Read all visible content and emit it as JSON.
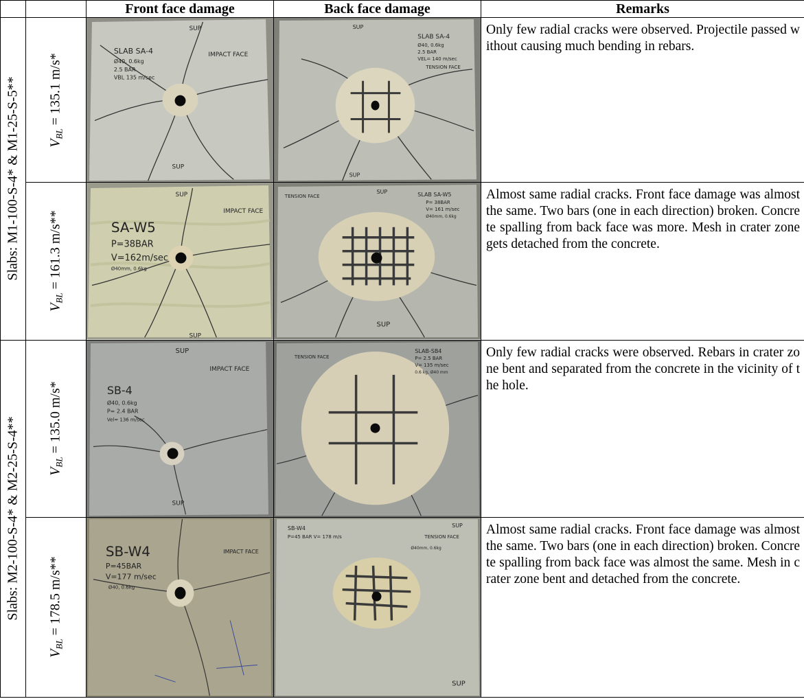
{
  "headers": {
    "c0": "",
    "c1": "",
    "front": "Front face damage",
    "back": "Back face damage",
    "remarks": "Remarks"
  },
  "groups": [
    {
      "label": "Slabs: M1-100-S-4* & M1-25-S-5**",
      "rows": [
        {
          "velocity": {
            "symbol": "V",
            "sub": "BL",
            "value": "= 135.1 m/s*"
          },
          "front": {
            "lines": [
              "SLAB SA-4",
              "Ø40, 0.6kg",
              "2.5 BAR",
              "VBL 135 m/sec"
            ],
            "tags": [
              "SUP",
              "IMPACT FACE",
              "SUP"
            ]
          },
          "back": {
            "lines": [
              "SLAB SA-4",
              "Ø40, 0.6kg",
              "2.5 BAR",
              "VEL= 140 m/sec"
            ],
            "tags": [
              "SUP",
              "TENSION FACE",
              "SUP"
            ]
          },
          "remark": "Only few radial cracks were observed. Projectile passed without causing much bending in rebars."
        },
        {
          "velocity": {
            "symbol": "V",
            "sub": "BL",
            "value": "= 161.3 m/s**"
          },
          "front": {
            "lines": [
              "SA-W5",
              "P=38BAR",
              "V=162m/sec",
              "Ø40mm, 0.6kg"
            ],
            "tags": [
              "SUP",
              "IMPACT FACE",
              "SUP"
            ]
          },
          "back": {
            "lines": [
              "SLAB SA-W5",
              "P= 38BAR",
              "V= 161 m/sec",
              "Ø40mm, 0.6kg"
            ],
            "tags": [
              "SUP",
              "TENSION FACE",
              "SUP"
            ]
          },
          "remark": "Almost same radial cracks. Front face damage was almost the same. Two bars (one in each direction) broken. Concrete spalling from back face was more. Mesh in crater zone gets detached from the concrete."
        }
      ]
    },
    {
      "label": "Slabs: M2-100-S-4* & M2-25-S-4**",
      "rows": [
        {
          "velocity": {
            "symbol": "V",
            "sub": "BL",
            "value": "= 135.0 m/s*"
          },
          "front": {
            "lines": [
              "SB-4",
              "Ø40, 0.6kg",
              "P= 2.4 BAR",
              "Vel= 136 m/sec"
            ],
            "tags": [
              "SUP",
              "IMPACT FACE",
              "SUP"
            ]
          },
          "back": {
            "lines": [
              "SLAB-SB4",
              "P= 2.5 BAR",
              "V= 135 m/sec",
              "0.6 kg, Ø40 mm"
            ],
            "tags": [
              "",
              "TENSION FACE",
              ""
            ]
          },
          "remark": "Only few radial cracks were observed. Rebars in crater zone bent and separated from the concrete in the vicinity of the hole."
        },
        {
          "velocity": {
            "symbol": "V",
            "sub": "BL",
            "value": "= 178.5 m/s**"
          },
          "front": {
            "lines": [
              "SB-W4",
              "P=45BAR",
              "V=177 m/sec",
              "Ø40, 0.6kg"
            ],
            "tags": [
              "",
              "IMPACT FACE",
              ""
            ]
          },
          "back": {
            "lines": [
              "SB-W4",
              "P=45 BAR  V= 178 m/s",
              "Ø40mm, 0.6kg"
            ],
            "tags": [
              "SUP",
              "TENSION FACE",
              "SUP"
            ]
          },
          "remark": "Almost same radial cracks. Front face damage was almost the same. Two bars (one in each direction) broken. Concrete spalling from back face was almost the same. Mesh in crater zone bent and detached from the concrete."
        }
      ]
    }
  ]
}
